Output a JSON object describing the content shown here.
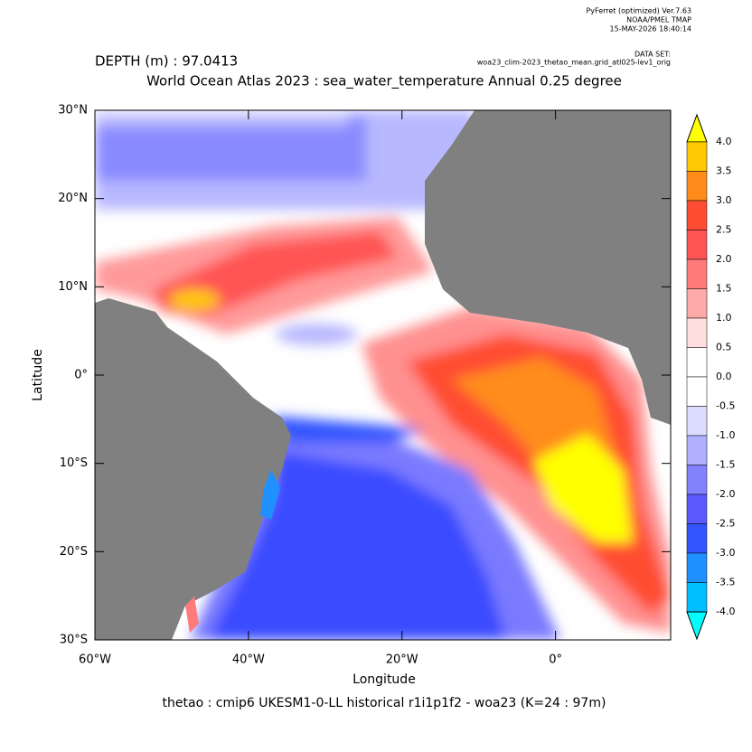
{
  "chart_data": {
    "type": "contour-map",
    "header": [
      "PyFerret (optimized) Ver.7.63",
      "NOAA/PMEL TMAP",
      "15-MAY-2026 18:40:14"
    ],
    "dataset_label": "DATA SET:",
    "dataset": "woa23_clim-2023_thetao_mean.grid_atl025-lev1_orig",
    "depth": "DEPTH (m) : 97.0413",
    "title": "World Ocean Atlas 2023 : sea_water_temperature Annual  0.25 degree",
    "subtitle": "thetao : cmip6 UKESM1-0-LL historical r1i1p1f2 - woa23  (K=24 : 97m)",
    "xlabel": "Longitude",
    "ylabel": "Latitude",
    "xlim": [
      -60,
      15
    ],
    "xticks": [
      {
        "value": -60,
        "label": "60°W"
      },
      {
        "value": -40,
        "label": "40°W"
      },
      {
        "value": -20,
        "label": "20°W"
      },
      {
        "value": 0,
        "label": "0°"
      }
    ],
    "ylim": [
      -30,
      30
    ],
    "yticks": [
      {
        "value": -30,
        "label": "30°S"
      },
      {
        "value": -20,
        "label": "20°S"
      },
      {
        "value": -10,
        "label": "10°S"
      },
      {
        "value": 0,
        "label": "0°"
      },
      {
        "value": 10,
        "label": "10°N"
      },
      {
        "value": 20,
        "label": "20°N"
      },
      {
        "value": 30,
        "label": "30°N"
      }
    ],
    "colorbar": {
      "ticks": [
        {
          "value": 4,
          "label": "4.0"
        },
        3.5,
        {
          "value": 3,
          "label": "3.0"
        },
        2.5,
        {
          "value": 2,
          "label": "2.0"
        },
        1.5,
        {
          "value": 1,
          "label": "1.0"
        },
        0.5,
        {
          "value": 0,
          "label": "0.0"
        },
        -0.5,
        {
          "value": -1,
          "label": "-1.0"
        },
        -1.5,
        {
          "value": -2,
          "label": "-2.0"
        },
        -2.5,
        {
          "value": -3,
          "label": "-3.0"
        },
        -3.5,
        {
          "value": -4,
          "label": "-4.0"
        }
      ],
      "colors": [
        "#ffff00",
        "#ffc800",
        "#ff8c1a",
        "#ff4d33",
        "#ff5555",
        "#ff7b7b",
        "#ffaaaa",
        "#ffdede",
        "#ffffff",
        "#ffffff",
        "#dcdcff",
        "#b0b0ff",
        "#8282ff",
        "#5a5aff",
        "#3355ff",
        "#1e90ff",
        "#00bfff",
        "#00ffff"
      ]
    }
  }
}
